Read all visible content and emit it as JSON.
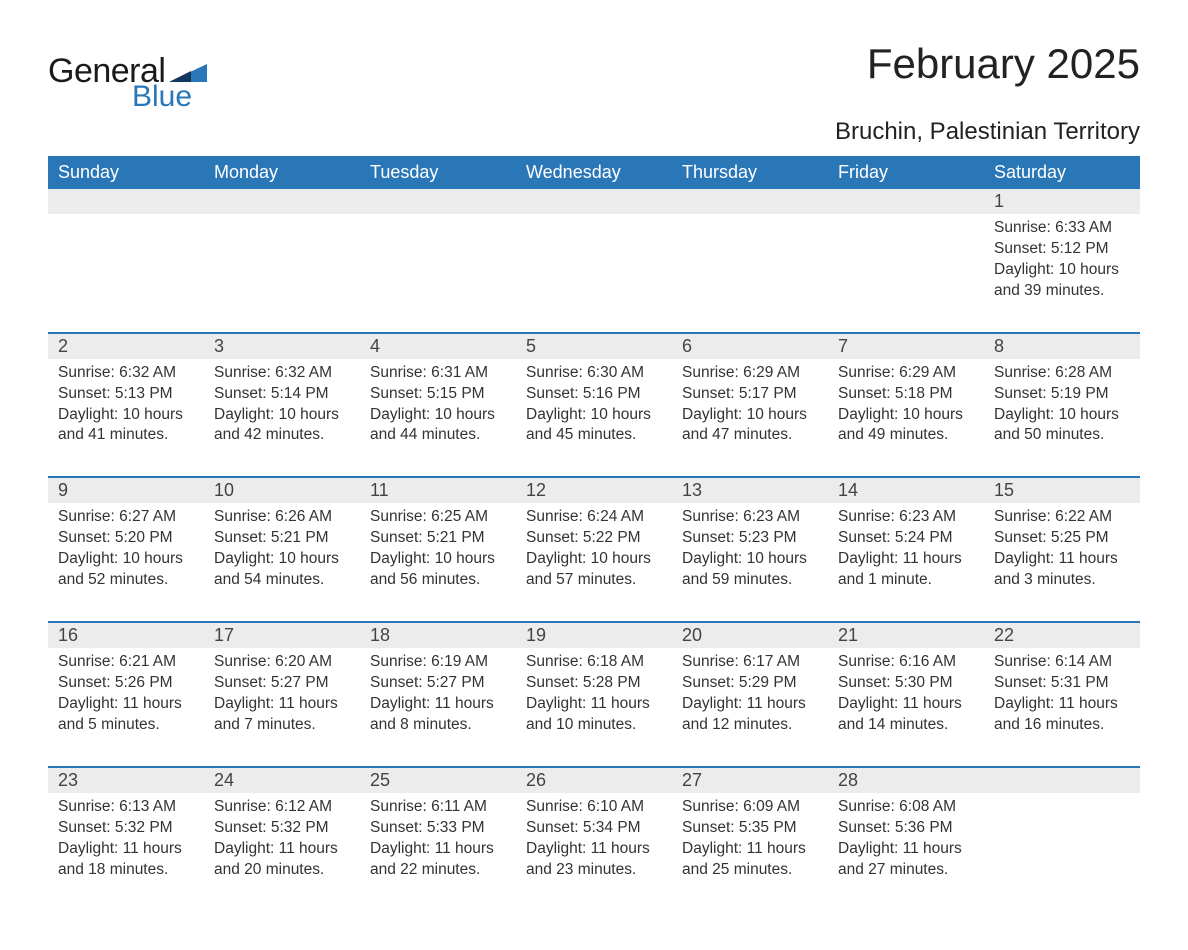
{
  "brand": {
    "general": "General",
    "blue": "Blue",
    "accent_color": "#2a77b8"
  },
  "title": "February 2025",
  "location": "Bruchin, Palestinian Territory",
  "day_headers": [
    "Sunday",
    "Monday",
    "Tuesday",
    "Wednesday",
    "Thursday",
    "Friday",
    "Saturday"
  ],
  "colors": {
    "header_bg": "#2a77b8",
    "header_text": "#ffffff",
    "daynum_bg": "#ececec",
    "row_border": "#2a77b8",
    "body_text": "#333333",
    "page_bg": "#ffffff"
  },
  "typography": {
    "title_fontsize": 42,
    "location_fontsize": 24,
    "header_fontsize": 18,
    "daynum_fontsize": 18,
    "body_fontsize": 15.5
  },
  "weeks": [
    [
      {
        "n": "",
        "lines": []
      },
      {
        "n": "",
        "lines": []
      },
      {
        "n": "",
        "lines": []
      },
      {
        "n": "",
        "lines": []
      },
      {
        "n": "",
        "lines": []
      },
      {
        "n": "",
        "lines": []
      },
      {
        "n": "1",
        "lines": [
          "Sunrise: 6:33 AM",
          "Sunset: 5:12 PM",
          "Daylight: 10 hours and 39 minutes."
        ]
      }
    ],
    [
      {
        "n": "2",
        "lines": [
          "Sunrise: 6:32 AM",
          "Sunset: 5:13 PM",
          "Daylight: 10 hours and 41 minutes."
        ]
      },
      {
        "n": "3",
        "lines": [
          "Sunrise: 6:32 AM",
          "Sunset: 5:14 PM",
          "Daylight: 10 hours and 42 minutes."
        ]
      },
      {
        "n": "4",
        "lines": [
          "Sunrise: 6:31 AM",
          "Sunset: 5:15 PM",
          "Daylight: 10 hours and 44 minutes."
        ]
      },
      {
        "n": "5",
        "lines": [
          "Sunrise: 6:30 AM",
          "Sunset: 5:16 PM",
          "Daylight: 10 hours and 45 minutes."
        ]
      },
      {
        "n": "6",
        "lines": [
          "Sunrise: 6:29 AM",
          "Sunset: 5:17 PM",
          "Daylight: 10 hours and 47 minutes."
        ]
      },
      {
        "n": "7",
        "lines": [
          "Sunrise: 6:29 AM",
          "Sunset: 5:18 PM",
          "Daylight: 10 hours and 49 minutes."
        ]
      },
      {
        "n": "8",
        "lines": [
          "Sunrise: 6:28 AM",
          "Sunset: 5:19 PM",
          "Daylight: 10 hours and 50 minutes."
        ]
      }
    ],
    [
      {
        "n": "9",
        "lines": [
          "Sunrise: 6:27 AM",
          "Sunset: 5:20 PM",
          "Daylight: 10 hours and 52 minutes."
        ]
      },
      {
        "n": "10",
        "lines": [
          "Sunrise: 6:26 AM",
          "Sunset: 5:21 PM",
          "Daylight: 10 hours and 54 minutes."
        ]
      },
      {
        "n": "11",
        "lines": [
          "Sunrise: 6:25 AM",
          "Sunset: 5:21 PM",
          "Daylight: 10 hours and 56 minutes."
        ]
      },
      {
        "n": "12",
        "lines": [
          "Sunrise: 6:24 AM",
          "Sunset: 5:22 PM",
          "Daylight: 10 hours and 57 minutes."
        ]
      },
      {
        "n": "13",
        "lines": [
          "Sunrise: 6:23 AM",
          "Sunset: 5:23 PM",
          "Daylight: 10 hours and 59 minutes."
        ]
      },
      {
        "n": "14",
        "lines": [
          "Sunrise: 6:23 AM",
          "Sunset: 5:24 PM",
          "Daylight: 11 hours and 1 minute."
        ]
      },
      {
        "n": "15",
        "lines": [
          "Sunrise: 6:22 AM",
          "Sunset: 5:25 PM",
          "Daylight: 11 hours and 3 minutes."
        ]
      }
    ],
    [
      {
        "n": "16",
        "lines": [
          "Sunrise: 6:21 AM",
          "Sunset: 5:26 PM",
          "Daylight: 11 hours and 5 minutes."
        ]
      },
      {
        "n": "17",
        "lines": [
          "Sunrise: 6:20 AM",
          "Sunset: 5:27 PM",
          "Daylight: 11 hours and 7 minutes."
        ]
      },
      {
        "n": "18",
        "lines": [
          "Sunrise: 6:19 AM",
          "Sunset: 5:27 PM",
          "Daylight: 11 hours and 8 minutes."
        ]
      },
      {
        "n": "19",
        "lines": [
          "Sunrise: 6:18 AM",
          "Sunset: 5:28 PM",
          "Daylight: 11 hours and 10 minutes."
        ]
      },
      {
        "n": "20",
        "lines": [
          "Sunrise: 6:17 AM",
          "Sunset: 5:29 PM",
          "Daylight: 11 hours and 12 minutes."
        ]
      },
      {
        "n": "21",
        "lines": [
          "Sunrise: 6:16 AM",
          "Sunset: 5:30 PM",
          "Daylight: 11 hours and 14 minutes."
        ]
      },
      {
        "n": "22",
        "lines": [
          "Sunrise: 6:14 AM",
          "Sunset: 5:31 PM",
          "Daylight: 11 hours and 16 minutes."
        ]
      }
    ],
    [
      {
        "n": "23",
        "lines": [
          "Sunrise: 6:13 AM",
          "Sunset: 5:32 PM",
          "Daylight: 11 hours and 18 minutes."
        ]
      },
      {
        "n": "24",
        "lines": [
          "Sunrise: 6:12 AM",
          "Sunset: 5:32 PM",
          "Daylight: 11 hours and 20 minutes."
        ]
      },
      {
        "n": "25",
        "lines": [
          "Sunrise: 6:11 AM",
          "Sunset: 5:33 PM",
          "Daylight: 11 hours and 22 minutes."
        ]
      },
      {
        "n": "26",
        "lines": [
          "Sunrise: 6:10 AM",
          "Sunset: 5:34 PM",
          "Daylight: 11 hours and 23 minutes."
        ]
      },
      {
        "n": "27",
        "lines": [
          "Sunrise: 6:09 AM",
          "Sunset: 5:35 PM",
          "Daylight: 11 hours and 25 minutes."
        ]
      },
      {
        "n": "28",
        "lines": [
          "Sunrise: 6:08 AM",
          "Sunset: 5:36 PM",
          "Daylight: 11 hours and 27 minutes."
        ]
      },
      {
        "n": "",
        "lines": []
      }
    ]
  ]
}
